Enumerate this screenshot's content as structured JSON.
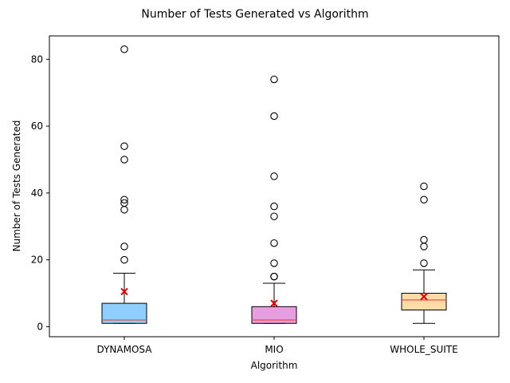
{
  "chart_data": {
    "type": "box",
    "title": "Number of Tests Generated vs Algorithm",
    "xlabel": "Algorithm",
    "ylabel": "Number of Tests Generated",
    "ylim": [
      -3,
      87
    ],
    "yticks": [
      0,
      20,
      40,
      60,
      80
    ],
    "grid": false,
    "legend": "none",
    "mean_marker": "x",
    "colors": {
      "median": "#e8413a",
      "mean": "#e00000",
      "whisker": "#000000",
      "outlier_edge": "#000000"
    },
    "categories": [
      {
        "name": "DYNAMOSA",
        "fill": "#8ecfff",
        "whisker_low": 1,
        "q1": 1,
        "median": 2,
        "q3": 7,
        "whisker_high": 16,
        "mean": 10.5,
        "outliers": [
          20,
          24,
          35,
          37,
          38,
          50,
          54,
          83
        ]
      },
      {
        "name": "MIO",
        "fill": "#e79ee0",
        "whisker_low": 1,
        "q1": 1,
        "median": 2,
        "q3": 6,
        "whisker_high": 13,
        "mean": 7,
        "outliers": [
          15,
          15,
          19,
          25,
          33,
          36,
          45,
          63,
          74
        ]
      },
      {
        "name": "WHOLE_SUITE",
        "fill": "#ffdba8",
        "whisker_low": 1,
        "q1": 5,
        "median": 8,
        "q3": 10,
        "whisker_high": 17,
        "mean": 9,
        "outliers": [
          19,
          24,
          26,
          38,
          42
        ]
      }
    ]
  }
}
